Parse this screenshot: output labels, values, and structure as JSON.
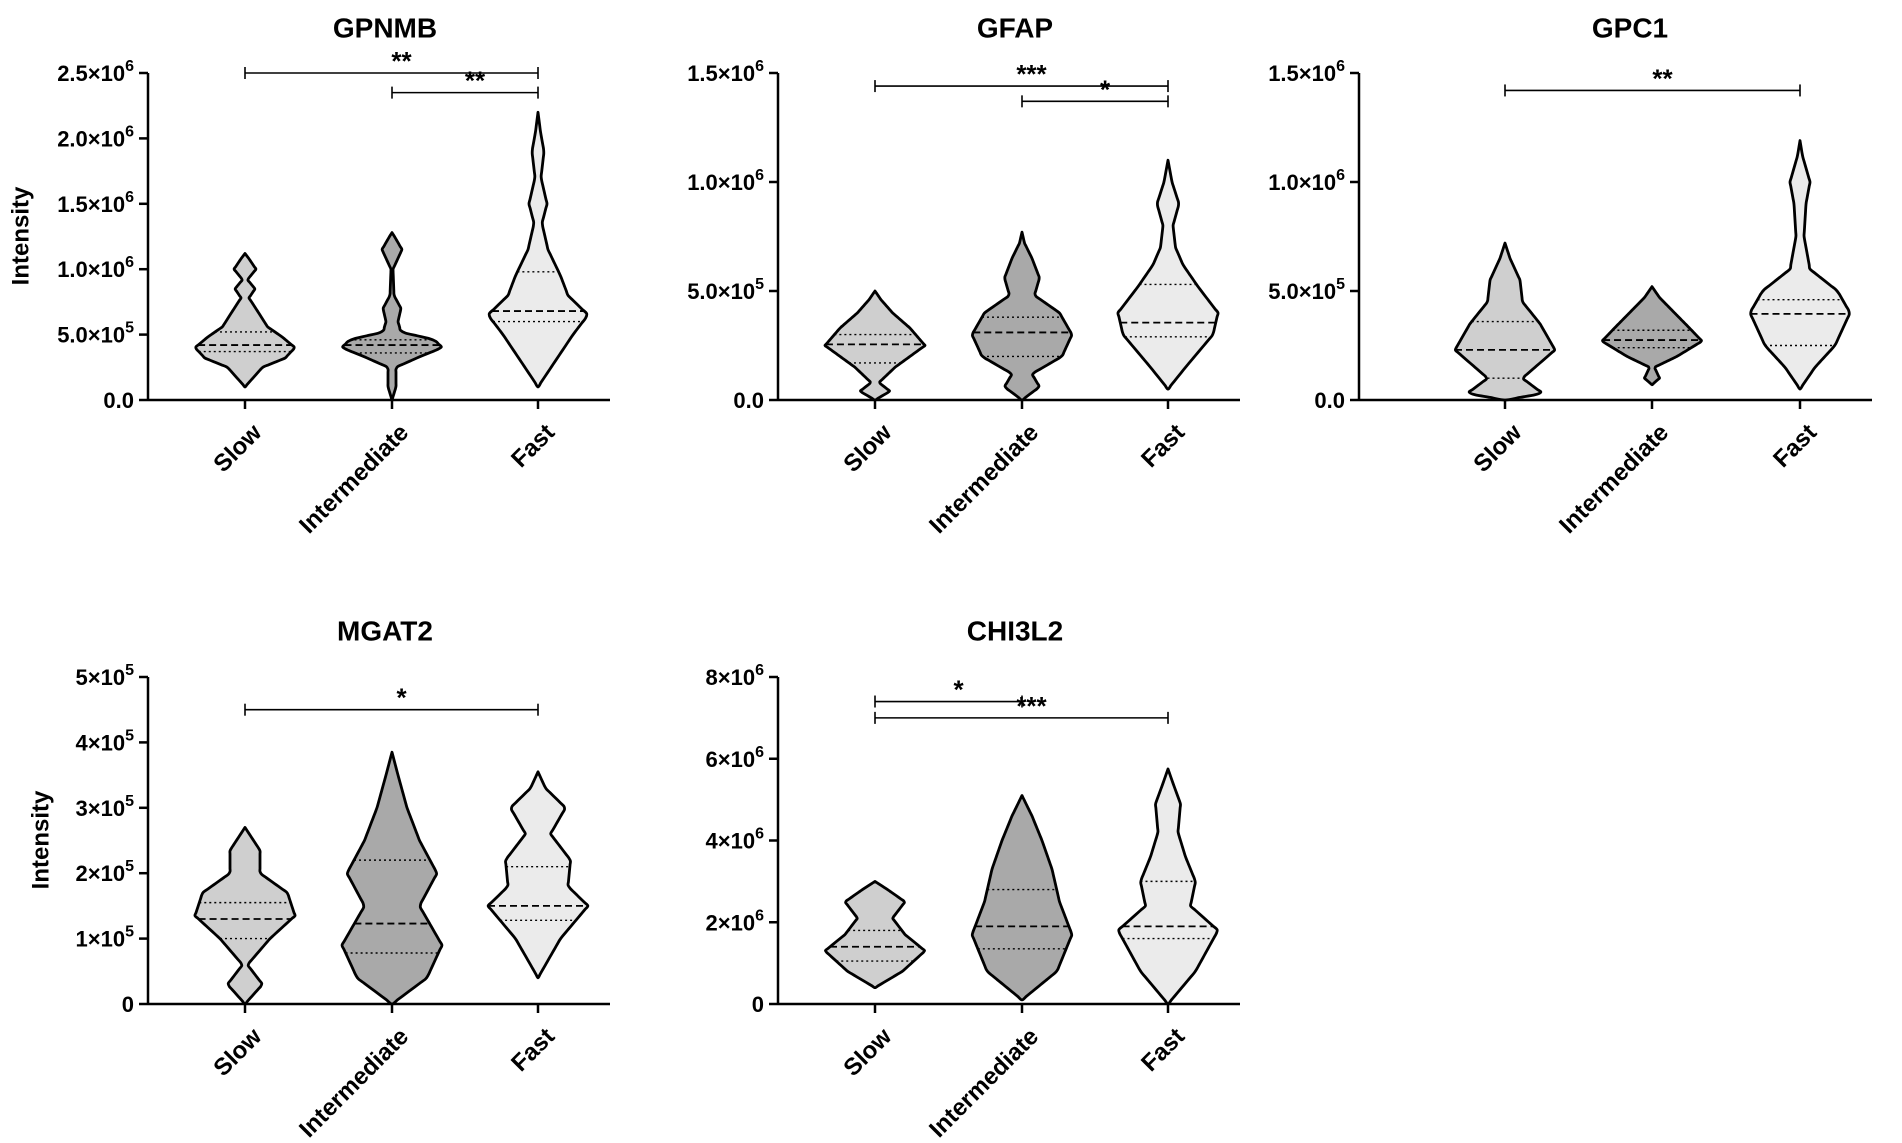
{
  "chart_data": [
    {
      "type": "violin",
      "title": "GPNMB",
      "ylabel": "Intensity",
      "categories": [
        "Slow",
        "Intermediate",
        "Fast"
      ],
      "ylim": [
        0,
        2500000
      ],
      "yticks": [
        {
          "value": 0,
          "label": "0.0"
        },
        {
          "value": 500000,
          "label": "5.0×10",
          "exp": "5"
        },
        {
          "value": 1000000,
          "label": "1.0×10",
          "exp": "6"
        },
        {
          "value": 1500000,
          "label": "1.5×10",
          "exp": "6"
        },
        {
          "value": 2000000,
          "label": "2.0×10",
          "exp": "6"
        },
        {
          "value": 2500000,
          "label": "2.5×10",
          "exp": "6"
        }
      ],
      "violins": [
        {
          "name": "Slow",
          "fill": "#cfcfcf",
          "median": 420000,
          "q1": 370000,
          "q3": 520000,
          "profile": [
            [
              100000,
              0
            ],
            [
              250000,
              0.35
            ],
            [
              320000,
              0.8
            ],
            [
              400000,
              1
            ],
            [
              480000,
              0.75
            ],
            [
              560000,
              0.45
            ],
            [
              680000,
              0.25
            ],
            [
              780000,
              0.08
            ],
            [
              850000,
              0.2
            ],
            [
              920000,
              0.05
            ],
            [
              1000000,
              0.22
            ],
            [
              1080000,
              0.08
            ],
            [
              1120000,
              0
            ]
          ]
        },
        {
          "name": "Intermediate",
          "fill": "#a9a9a9",
          "median": 420000,
          "q1": 360000,
          "q3": 460000,
          "profile": [
            [
              0,
              0
            ],
            [
              100000,
              0.08
            ],
            [
              250000,
              0.08
            ],
            [
              330000,
              0.55
            ],
            [
              400000,
              1
            ],
            [
              460000,
              0.85
            ],
            [
              520000,
              0.18
            ],
            [
              600000,
              0.12
            ],
            [
              700000,
              0.18
            ],
            [
              800000,
              0.04
            ],
            [
              1000000,
              0.02
            ],
            [
              1150000,
              0.2
            ],
            [
              1250000,
              0.05
            ],
            [
              1280000,
              0
            ]
          ]
        },
        {
          "name": "Fast",
          "fill": "#ebebeb",
          "median": 680000,
          "q1": 600000,
          "q3": 980000,
          "profile": [
            [
              100000,
              0
            ],
            [
              300000,
              0.35
            ],
            [
              500000,
              0.7
            ],
            [
              650000,
              1
            ],
            [
              800000,
              0.6
            ],
            [
              950000,
              0.45
            ],
            [
              1150000,
              0.2
            ],
            [
              1350000,
              0.08
            ],
            [
              1500000,
              0.18
            ],
            [
              1700000,
              0.06
            ],
            [
              1900000,
              0.12
            ],
            [
              2050000,
              0.05
            ],
            [
              2200000,
              0
            ]
          ]
        }
      ],
      "significance": [
        {
          "from": 0,
          "to": 2,
          "value": 2500000,
          "label": "**"
        },
        {
          "from": 1,
          "to": 2,
          "value": 2350000,
          "label": "**"
        }
      ]
    },
    {
      "type": "violin",
      "title": "GFAP",
      "categories": [
        "Slow",
        "Intermediate",
        "Fast"
      ],
      "ylim": [
        0,
        1500000
      ],
      "yticks": [
        {
          "value": 0,
          "label": "0.0"
        },
        {
          "value": 500000,
          "label": "5.0×10",
          "exp": "5"
        },
        {
          "value": 1000000,
          "label": "1.0×10",
          "exp": "6"
        },
        {
          "value": 1500000,
          "label": "1.5×10",
          "exp": "6"
        }
      ],
      "violins": [
        {
          "name": "Slow",
          "fill": "#cfcfcf",
          "median": 255000,
          "q1": 170000,
          "q3": 300000,
          "profile": [
            [
              0,
              0
            ],
            [
              40000,
              0.3
            ],
            [
              80000,
              0.08
            ],
            [
              150000,
              0.4
            ],
            [
              250000,
              1
            ],
            [
              330000,
              0.7
            ],
            [
              400000,
              0.35
            ],
            [
              460000,
              0.12
            ],
            [
              500000,
              0
            ]
          ]
        },
        {
          "name": "Intermediate",
          "fill": "#a9a9a9",
          "median": 310000,
          "q1": 200000,
          "q3": 380000,
          "profile": [
            [
              0,
              0
            ],
            [
              60000,
              0.35
            ],
            [
              120000,
              0.2
            ],
            [
              200000,
              0.8
            ],
            [
              300000,
              1
            ],
            [
              400000,
              0.75
            ],
            [
              480000,
              0.25
            ],
            [
              560000,
              0.35
            ],
            [
              650000,
              0.2
            ],
            [
              720000,
              0.05
            ],
            [
              770000,
              0
            ]
          ]
        },
        {
          "name": "Fast",
          "fill": "#ebebeb",
          "median": 355000,
          "q1": 290000,
          "q3": 530000,
          "profile": [
            [
              50000,
              0
            ],
            [
              150000,
              0.35
            ],
            [
              300000,
              0.9
            ],
            [
              400000,
              1
            ],
            [
              520000,
              0.6
            ],
            [
              620000,
              0.3
            ],
            [
              700000,
              0.15
            ],
            [
              800000,
              0.1
            ],
            [
              900000,
              0.22
            ],
            [
              1000000,
              0.08
            ],
            [
              1100000,
              0
            ]
          ]
        }
      ],
      "significance": [
        {
          "from": 0,
          "to": 2,
          "value": 1440000,
          "label": "***"
        },
        {
          "from": 1,
          "to": 2,
          "value": 1370000,
          "label": "*"
        }
      ]
    },
    {
      "type": "violin",
      "title": "GPC1",
      "categories": [
        "Slow",
        "Intermediate",
        "Fast"
      ],
      "ylim": [
        0,
        1500000
      ],
      "yticks": [
        {
          "value": 0,
          "label": "0.0"
        },
        {
          "value": 500000,
          "label": "5.0×10",
          "exp": "5"
        },
        {
          "value": 1000000,
          "label": "1.0×10",
          "exp": "6"
        },
        {
          "value": 1500000,
          "label": "1.5×10",
          "exp": "6"
        }
      ],
      "violins": [
        {
          "name": "Slow",
          "fill": "#cfcfcf",
          "median": 230000,
          "q1": 100000,
          "q3": 360000,
          "profile": [
            [
              0,
              0
            ],
            [
              30000,
              0.75
            ],
            [
              100000,
              0.35
            ],
            [
              230000,
              1
            ],
            [
              350000,
              0.7
            ],
            [
              450000,
              0.35
            ],
            [
              550000,
              0.3
            ],
            [
              650000,
              0.1
            ],
            [
              720000,
              0
            ]
          ]
        },
        {
          "name": "Intermediate",
          "fill": "#a9a9a9",
          "median": 275000,
          "q1": 240000,
          "q3": 320000,
          "profile": [
            [
              70000,
              0
            ],
            [
              100000,
              0.15
            ],
            [
              150000,
              0.05
            ],
            [
              200000,
              0.5
            ],
            [
              270000,
              1
            ],
            [
              330000,
              0.75
            ],
            [
              400000,
              0.45
            ],
            [
              470000,
              0.15
            ],
            [
              520000,
              0
            ]
          ]
        },
        {
          "name": "Fast",
          "fill": "#ebebeb",
          "median": 395000,
          "q1": 250000,
          "q3": 460000,
          "profile": [
            [
              50000,
              0
            ],
            [
              150000,
              0.3
            ],
            [
              250000,
              0.7
            ],
            [
              400000,
              1
            ],
            [
              500000,
              0.75
            ],
            [
              600000,
              0.2
            ],
            [
              750000,
              0.08
            ],
            [
              900000,
              0.12
            ],
            [
              1000000,
              0.2
            ],
            [
              1120000,
              0.05
            ],
            [
              1190000,
              0
            ]
          ]
        }
      ],
      "significance": [
        {
          "from": 0,
          "to": 2,
          "value": 1420000,
          "label": "**"
        }
      ]
    },
    {
      "type": "violin",
      "title": "MGAT2",
      "ylabel": "Intensity",
      "categories": [
        "Slow",
        "Intermediate",
        "Fast"
      ],
      "ylim": [
        0,
        500000
      ],
      "yticks": [
        {
          "value": 0,
          "label": "0"
        },
        {
          "value": 100000,
          "label": "1×10",
          "exp": "5"
        },
        {
          "value": 200000,
          "label": "2×10",
          "exp": "5"
        },
        {
          "value": 300000,
          "label": "3×10",
          "exp": "5"
        },
        {
          "value": 400000,
          "label": "4×10",
          "exp": "5"
        },
        {
          "value": 500000,
          "label": "5×10",
          "exp": "5"
        }
      ],
      "violins": [
        {
          "name": "Slow",
          "fill": "#cfcfcf",
          "median": 130000,
          "q1": 100000,
          "q3": 155000,
          "profile": [
            [
              0,
              0
            ],
            [
              30000,
              0.35
            ],
            [
              60000,
              0.05
            ],
            [
              100000,
              0.5
            ],
            [
              135000,
              1
            ],
            [
              170000,
              0.85
            ],
            [
              200000,
              0.3
            ],
            [
              235000,
              0.3
            ],
            [
              270000,
              0
            ]
          ]
        },
        {
          "name": "Intermediate",
          "fill": "#a9a9a9",
          "median": 123000,
          "q1": 78000,
          "q3": 220000,
          "profile": [
            [
              0,
              0
            ],
            [
              40000,
              0.7
            ],
            [
              90000,
              1
            ],
            [
              150000,
              0.55
            ],
            [
              200000,
              0.9
            ],
            [
              250000,
              0.55
            ],
            [
              300000,
              0.3
            ],
            [
              350000,
              0.12
            ],
            [
              385000,
              0
            ]
          ]
        },
        {
          "name": "Fast",
          "fill": "#ebebeb",
          "median": 150000,
          "q1": 128000,
          "q3": 210000,
          "profile": [
            [
              40000,
              0
            ],
            [
              100000,
              0.45
            ],
            [
              150000,
              1
            ],
            [
              180000,
              0.6
            ],
            [
              220000,
              0.65
            ],
            [
              260000,
              0.25
            ],
            [
              300000,
              0.55
            ],
            [
              330000,
              0.15
            ],
            [
              355000,
              0
            ]
          ]
        }
      ],
      "significance": [
        {
          "from": 0,
          "to": 2,
          "value": 450000,
          "label": "*"
        }
      ]
    },
    {
      "type": "violin",
      "title": "CHI3L2",
      "categories": [
        "Slow",
        "Intermediate",
        "Fast"
      ],
      "ylim": [
        0,
        8000000
      ],
      "yticks": [
        {
          "value": 0,
          "label": "0"
        },
        {
          "value": 2000000,
          "label": "2×10",
          "exp": "6"
        },
        {
          "value": 4000000,
          "label": "4×10",
          "exp": "6"
        },
        {
          "value": 6000000,
          "label": "6×10",
          "exp": "6"
        },
        {
          "value": 8000000,
          "label": "8×10",
          "exp": "6"
        }
      ],
      "violins": [
        {
          "name": "Slow",
          "fill": "#cfcfcf",
          "median": 1400000,
          "q1": 1050000,
          "q3": 1800000,
          "profile": [
            [
              400000,
              0
            ],
            [
              800000,
              0.55
            ],
            [
              1300000,
              1
            ],
            [
              1700000,
              0.6
            ],
            [
              2100000,
              0.35
            ],
            [
              2500000,
              0.6
            ],
            [
              2800000,
              0.25
            ],
            [
              3000000,
              0
            ]
          ]
        },
        {
          "name": "Intermediate",
          "fill": "#a9a9a9",
          "median": 1900000,
          "q1": 1350000,
          "q3": 2800000,
          "profile": [
            [
              100000,
              0
            ],
            [
              800000,
              0.7
            ],
            [
              1700000,
              1
            ],
            [
              2500000,
              0.75
            ],
            [
              3300000,
              0.6
            ],
            [
              4000000,
              0.4
            ],
            [
              4600000,
              0.2
            ],
            [
              5100000,
              0
            ]
          ]
        },
        {
          "name": "Fast",
          "fill": "#ebebeb",
          "median": 1900000,
          "q1": 1600000,
          "q3": 3000000,
          "profile": [
            [
              0,
              0
            ],
            [
              800000,
              0.55
            ],
            [
              1800000,
              1
            ],
            [
              2400000,
              0.45
            ],
            [
              3000000,
              0.55
            ],
            [
              3600000,
              0.35
            ],
            [
              4200000,
              0.2
            ],
            [
              4900000,
              0.25
            ],
            [
              5400000,
              0.1
            ],
            [
              5750000,
              0
            ]
          ]
        }
      ],
      "significance": [
        {
          "from": 0,
          "to": 1,
          "value": 7400000,
          "label": "*"
        },
        {
          "from": 0,
          "to": 2,
          "value": 7000000,
          "label": "***"
        }
      ]
    }
  ]
}
